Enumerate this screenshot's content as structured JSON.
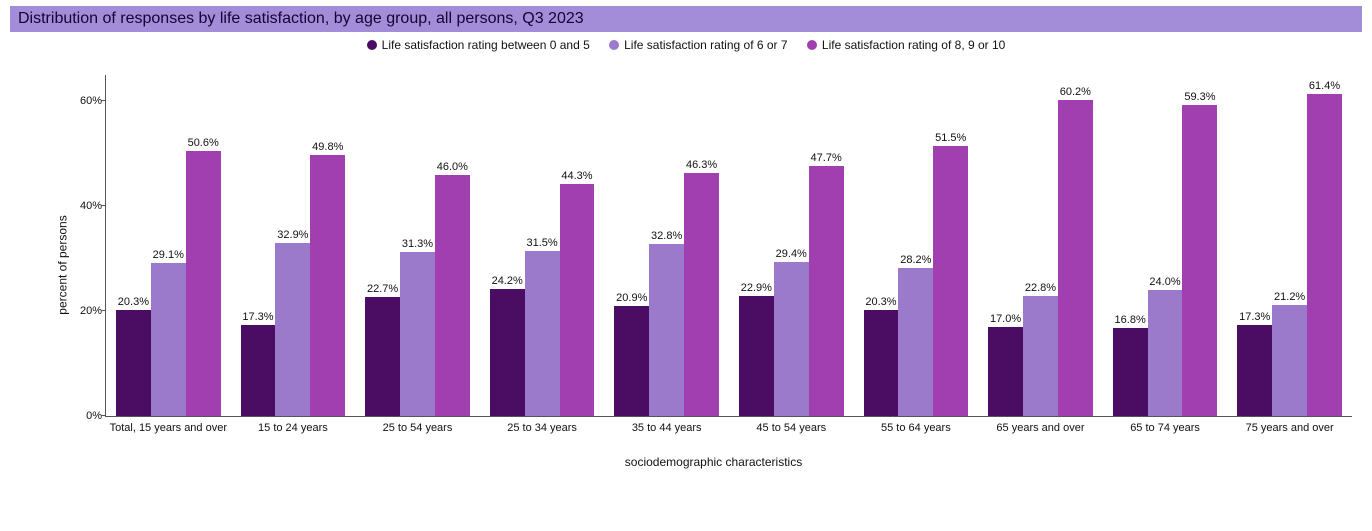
{
  "title": "Distribution of responses by life satisfaction, by age group, all persons, Q3 2023",
  "title_bg": "#a38dd9",
  "legend": {
    "items": [
      {
        "label": "Life satisfaction rating between 0 and 5",
        "color": "#4a0d63"
      },
      {
        "label": "Life satisfaction rating of 6 or 7",
        "color": "#9b7acb"
      },
      {
        "label": "Life satisfaction rating of 8, 9 or 10",
        "color": "#a13fb0"
      }
    ]
  },
  "chart": {
    "type": "grouped-bar",
    "yaxis_title": "percent of persons",
    "xaxis_title": "sociodemographic characteristics",
    "ylim": [
      0,
      65
    ],
    "ytick_step": 20,
    "ytick_suffix": "%",
    "series_colors": [
      "#4a0d63",
      "#9b7acb",
      "#a13fb0"
    ],
    "categories": [
      "Total, 15 years and over",
      "15 to 24 years",
      "25 to 54 years",
      "25 to 34 years",
      "35 to 44 years",
      "45 to 54 years",
      "55 to 64 years",
      "65 years and over",
      "65 to 74 years",
      "75 years and over"
    ],
    "values": [
      [
        20.3,
        29.1,
        50.6
      ],
      [
        17.3,
        32.9,
        49.8
      ],
      [
        22.7,
        31.3,
        46.0
      ],
      [
        24.2,
        31.5,
        44.3
      ],
      [
        20.9,
        32.8,
        46.3
      ],
      [
        22.9,
        29.4,
        47.7
      ],
      [
        20.3,
        28.2,
        51.5
      ],
      [
        17.0,
        22.8,
        60.2
      ],
      [
        16.8,
        24.0,
        59.3
      ],
      [
        17.3,
        21.2,
        61.4
      ]
    ],
    "value_suffix": "%",
    "label_fontsize": 11,
    "background_color": "#ffffff"
  }
}
